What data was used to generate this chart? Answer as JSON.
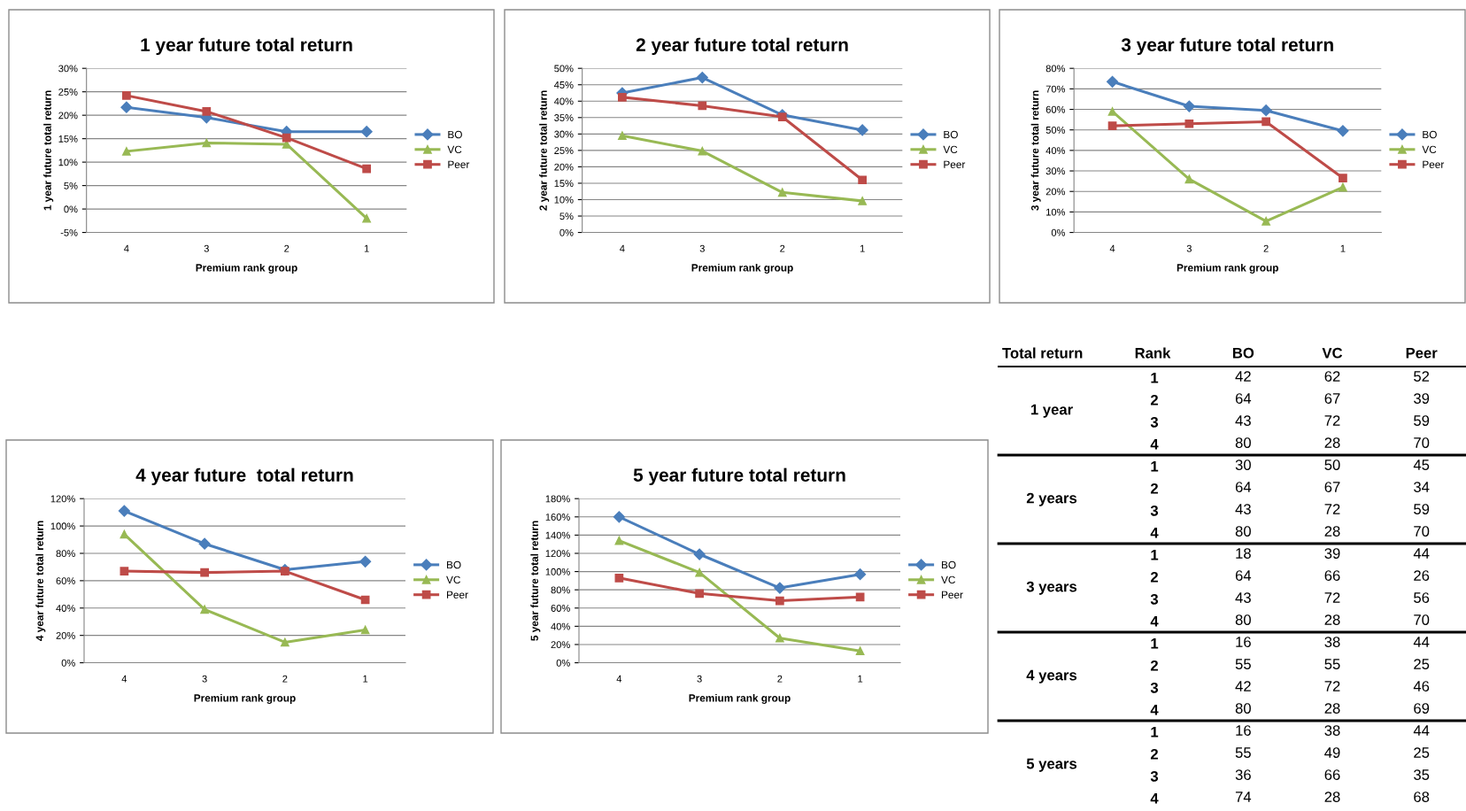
{
  "chart_data": [
    {
      "type": "line",
      "title": "1 year future total return",
      "xlabel": "Premium rank group",
      "ylabel": "1 year future total return",
      "categories": [
        "4",
        "3",
        "2",
        "1"
      ],
      "ylim": [
        -5,
        30
      ],
      "yticks": [
        {
          "value": -5,
          "label": "-5%"
        },
        {
          "value": 0,
          "label": "0%"
        },
        {
          "value": 5,
          "label": "5%"
        },
        {
          "value": 10,
          "label": "10%"
        },
        {
          "value": 15,
          "label": "15%"
        },
        {
          "value": 20,
          "label": "20%"
        },
        {
          "value": 25,
          "label": "25%"
        },
        {
          "value": 30,
          "label": "30%"
        }
      ],
      "grid": "y",
      "legend": "right",
      "series": [
        {
          "name": "BO",
          "color": "#4a7ebb",
          "marker": "diamond",
          "values": [
            21.7,
            19.5,
            16.5,
            16.5
          ]
        },
        {
          "name": "VC",
          "color": "#98b954",
          "marker": "triangle",
          "values": [
            12.3,
            14.1,
            13.8,
            -2.0
          ]
        },
        {
          "name": "Peer",
          "color": "#be4b48",
          "marker": "square",
          "values": [
            24.2,
            20.8,
            15.2,
            8.6
          ]
        }
      ]
    },
    {
      "type": "line",
      "title": "2 year future total return",
      "xlabel": "Premium rank group",
      "ylabel": "2 year future total return",
      "categories": [
        "4",
        "3",
        "2",
        "1"
      ],
      "ylim": [
        0,
        50
      ],
      "yticks": [
        {
          "value": 0,
          "label": "0%"
        },
        {
          "value": 5,
          "label": "5%"
        },
        {
          "value": 10,
          "label": "10%"
        },
        {
          "value": 15,
          "label": "15%"
        },
        {
          "value": 20,
          "label": "20%"
        },
        {
          "value": 25,
          "label": "25%"
        },
        {
          "value": 30,
          "label": "30%"
        },
        {
          "value": 35,
          "label": "35%"
        },
        {
          "value": 40,
          "label": "40%"
        },
        {
          "value": 45,
          "label": "45%"
        },
        {
          "value": 50,
          "label": "50%"
        }
      ],
      "grid": "y",
      "legend": "right",
      "series": [
        {
          "name": "BO",
          "color": "#4a7ebb",
          "marker": "diamond",
          "values": [
            42.5,
            47.2,
            35.8,
            31.2
          ]
        },
        {
          "name": "VC",
          "color": "#98b954",
          "marker": "triangle",
          "values": [
            29.5,
            24.8,
            12.2,
            9.6
          ]
        },
        {
          "name": "Peer",
          "color": "#be4b48",
          "marker": "square",
          "values": [
            41.2,
            38.6,
            35.2,
            16.0
          ]
        }
      ]
    },
    {
      "type": "line",
      "title": "3 year future total return",
      "xlabel": "Premium rank group",
      "ylabel": "3 year future total return",
      "categories": [
        "4",
        "3",
        "2",
        "1"
      ],
      "ylim": [
        0,
        80
      ],
      "yticks": [
        {
          "value": 0,
          "label": "0%"
        },
        {
          "value": 10,
          "label": "10%"
        },
        {
          "value": 20,
          "label": "20%"
        },
        {
          "value": 30,
          "label": "30%"
        },
        {
          "value": 40,
          "label": "40%"
        },
        {
          "value": 50,
          "label": "50%"
        },
        {
          "value": 60,
          "label": "60%"
        },
        {
          "value": 70,
          "label": "70%"
        },
        {
          "value": 80,
          "label": "80%"
        }
      ],
      "grid": "y",
      "legend": "right",
      "series": [
        {
          "name": "BO",
          "color": "#4a7ebb",
          "marker": "diamond",
          "values": [
            73.5,
            61.5,
            59.5,
            49.5
          ]
        },
        {
          "name": "VC",
          "color": "#98b954",
          "marker": "triangle",
          "values": [
            59,
            26,
            5.5,
            22
          ]
        },
        {
          "name": "Peer",
          "color": "#be4b48",
          "marker": "square",
          "values": [
            52,
            53,
            54,
            26.5
          ]
        }
      ]
    },
    {
      "type": "line",
      "title": "4 year future  total return",
      "xlabel": "Premium rank group",
      "ylabel": "4 year future total return",
      "categories": [
        "4",
        "3",
        "2",
        "1"
      ],
      "ylim": [
        0,
        120
      ],
      "yticks": [
        {
          "value": 0,
          "label": "0%"
        },
        {
          "value": 20,
          "label": "20%"
        },
        {
          "value": 40,
          "label": "40%"
        },
        {
          "value": 60,
          "label": "60%"
        },
        {
          "value": 80,
          "label": "80%"
        },
        {
          "value": 100,
          "label": "100%"
        },
        {
          "value": 120,
          "label": "120%"
        }
      ],
      "grid": "y",
      "legend": "right",
      "series": [
        {
          "name": "BO",
          "color": "#4a7ebb",
          "marker": "diamond",
          "values": [
            111,
            87,
            68,
            74
          ]
        },
        {
          "name": "VC",
          "color": "#98b954",
          "marker": "triangle",
          "values": [
            94,
            39,
            15,
            24
          ]
        },
        {
          "name": "Peer",
          "color": "#be4b48",
          "marker": "square",
          "values": [
            67,
            66,
            67,
            46
          ]
        }
      ]
    },
    {
      "type": "line",
      "title": "5 year future total return",
      "xlabel": "Premium rank group",
      "ylabel": "5 year future total return",
      "categories": [
        "4",
        "3",
        "2",
        "1"
      ],
      "ylim": [
        0,
        180
      ],
      "yticks": [
        {
          "value": 0,
          "label": "0%"
        },
        {
          "value": 20,
          "label": "20%"
        },
        {
          "value": 40,
          "label": "40%"
        },
        {
          "value": 60,
          "label": "60%"
        },
        {
          "value": 80,
          "label": "80%"
        },
        {
          "value": 100,
          "label": "100%"
        },
        {
          "value": 120,
          "label": "120%"
        },
        {
          "value": 140,
          "label": "140%"
        },
        {
          "value": 160,
          "label": "160%"
        },
        {
          "value": 180,
          "label": "180%"
        }
      ],
      "grid": "y",
      "legend": "right",
      "series": [
        {
          "name": "BO",
          "color": "#4a7ebb",
          "marker": "diamond",
          "values": [
            160,
            119,
            82,
            97
          ]
        },
        {
          "name": "VC",
          "color": "#98b954",
          "marker": "triangle",
          "values": [
            134,
            99,
            27,
            13
          ]
        },
        {
          "name": "Peer",
          "color": "#be4b48",
          "marker": "square",
          "values": [
            93,
            76,
            68,
            72
          ]
        }
      ]
    },
    {
      "type": "heatmap",
      "categories": [
        "BO",
        "VC",
        "Peer"
      ],
      "ylabel": "Rank",
      "color": "#ffffff",
      "data_labels": true,
      "y_categories": [
        "1",
        "2",
        "3",
        "4",
        "1",
        "2",
        "3",
        "4",
        "1",
        "2",
        "3",
        "4",
        "1",
        "2",
        "3",
        "4",
        "1",
        "2",
        "3",
        "4"
      ],
      "annotations": [
        "Total return",
        "1 year",
        "2 years",
        "3 years",
        "4 years",
        "5 years"
      ],
      "cells": [
        [
          42,
          62,
          52
        ],
        [
          64,
          67,
          39
        ],
        [
          43,
          72,
          59
        ],
        [
          80,
          28,
          70
        ],
        [
          30,
          50,
          45
        ],
        [
          64,
          67,
          34
        ],
        [
          43,
          72,
          59
        ],
        [
          80,
          28,
          70
        ],
        [
          18,
          39,
          44
        ],
        [
          64,
          66,
          26
        ],
        [
          43,
          72,
          56
        ],
        [
          80,
          28,
          70
        ],
        [
          16,
          38,
          44
        ],
        [
          55,
          55,
          25
        ],
        [
          42,
          72,
          46
        ],
        [
          80,
          28,
          69
        ],
        [
          16,
          38,
          44
        ],
        [
          55,
          49,
          25
        ],
        [
          36,
          66,
          35
        ],
        [
          74,
          28,
          68
        ]
      ]
    }
  ]
}
